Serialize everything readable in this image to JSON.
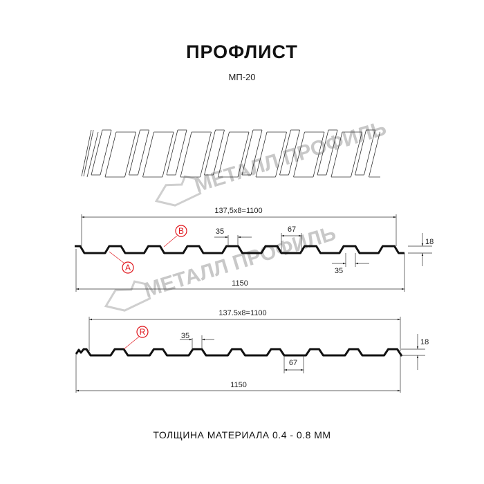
{
  "header": {
    "title": "ПРОФЛИСТ",
    "subtitle": "МП-20"
  },
  "watermark": {
    "text": "МЕТАЛЛ ПРОФИЛЬ"
  },
  "profile_1": {
    "pitch_label": "137,5x8=1100",
    "total_width_label": "1150",
    "crest_width_label": "35",
    "valley_width_label": "67",
    "bottom_crest_label": "35",
    "height_label": "18",
    "marker_a": "A",
    "marker_b": "B"
  },
  "profile_2": {
    "pitch_label": "137.5x8=1100",
    "total_width_label": "1150",
    "crest_width_label": "35",
    "valley_width_label": "67",
    "height_label": "18",
    "marker_r": "R"
  },
  "footer": {
    "thickness": "ТОЛЩИНА МАТЕРИАЛА 0.4 - 0.8 ММ"
  },
  "colors": {
    "line": "#111111",
    "marker": "#e0141b",
    "watermark": "#c8c8c8"
  }
}
